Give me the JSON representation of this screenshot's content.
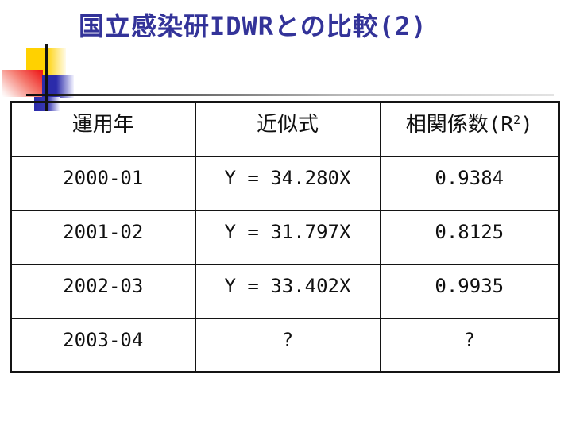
{
  "slide": {
    "title": "国立感染研IDWRとの比較(2)",
    "title_color": "#333399"
  },
  "decoration": {
    "yellow_square_color": "#ffd100",
    "red_square_color": "#ee1c1c",
    "blue_square_color": "#2b2baa",
    "line_color": "#111111"
  },
  "table": {
    "headers": {
      "col1": "運用年",
      "col2": "近似式",
      "col3_prefix": "相関係数(R",
      "col3_sup": "2",
      "col3_suffix": ")"
    },
    "rows": [
      {
        "year": "2000-01",
        "formula": "Y = 34.280X",
        "r2": "0.9384"
      },
      {
        "year": "2001-02",
        "formula": "Y = 31.797X",
        "r2": "0.8125"
      },
      {
        "year": "2002-03",
        "formula": "Y = 33.402X",
        "r2": "0.9935"
      },
      {
        "year": "2003-04",
        "formula": "?",
        "r2": "?"
      }
    ]
  }
}
